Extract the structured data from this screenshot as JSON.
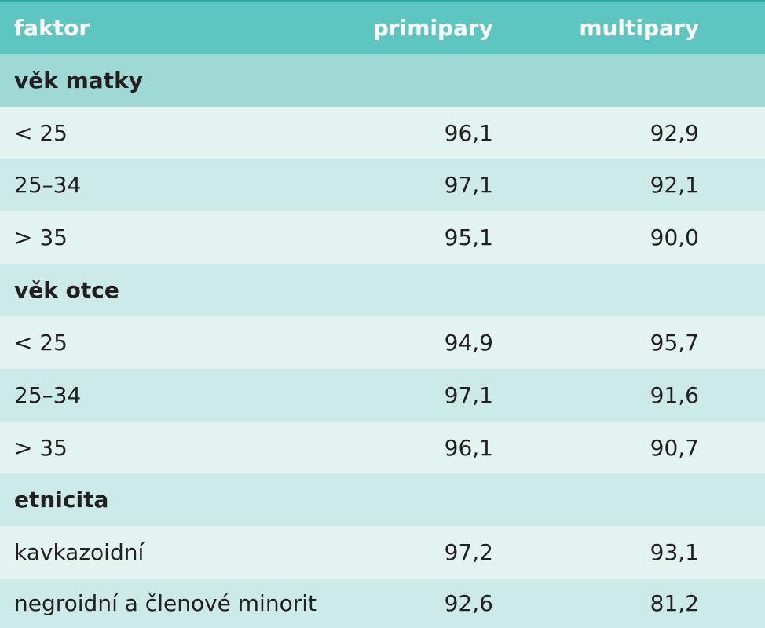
{
  "header": {
    "col_factor": "faktor",
    "col_primipary": "primipary",
    "col_multipary": "multipary"
  },
  "sections": [
    {
      "title": "věk matky",
      "rows": [
        {
          "label": "< 25",
          "primipary": "96,1",
          "multipary": "92,9"
        },
        {
          "label": "25–34",
          "primipary": "97,1",
          "multipary": "92,1"
        },
        {
          "label": "> 35",
          "primipary": "95,1",
          "multipary": "90,0"
        }
      ]
    },
    {
      "title": "věk otce",
      "rows": [
        {
          "label": "< 25",
          "primipary": "94,9",
          "multipary": "95,7"
        },
        {
          "label": "25–34",
          "primipary": "97,1",
          "multipary": "91,6"
        },
        {
          "label": "> 35",
          "primipary": "96,1",
          "multipary": "90,7"
        }
      ]
    },
    {
      "title": "etnicita",
      "rows": [
        {
          "label": "kavkazoidní",
          "primipary": "97,2",
          "multipary": "93,1"
        },
        {
          "label": "negroidní a členové minorit",
          "primipary": "92,6",
          "multipary": "81,2"
        }
      ]
    }
  ],
  "colors": {
    "header_bg": "#5ec6c0",
    "section_bg": "#9fd9d5",
    "row_light_bg": "#e3f3f2",
    "row_mid_bg": "#cceae8"
  }
}
